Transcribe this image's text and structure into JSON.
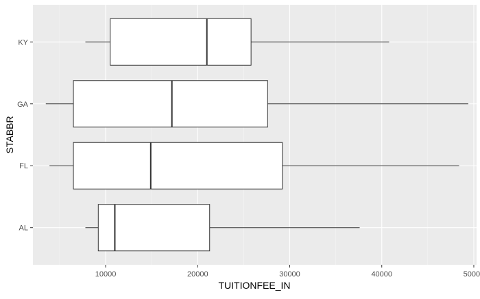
{
  "chart_data": {
    "type": "boxplot",
    "orientation": "horizontal",
    "title": "",
    "xlabel": "TUITIONFEE_IN",
    "ylabel": "STABBR",
    "xlim": [
      2100,
      50300
    ],
    "x_ticks": [
      10000,
      20000,
      30000,
      40000,
      50000
    ],
    "x_tick_labels": [
      "10000",
      "20000",
      "30000",
      "40000",
      "50000"
    ],
    "categories": [
      "AL",
      "FL",
      "GA",
      "KY"
    ],
    "boxes": [
      {
        "category": "AL",
        "whisker_low": 7800,
        "q1": 9200,
        "median": 11000,
        "q3": 21300,
        "whisker_high": 37600
      },
      {
        "category": "FL",
        "whisker_low": 3900,
        "q1": 6500,
        "median": 14900,
        "q3": 29200,
        "whisker_high": 48400
      },
      {
        "category": "GA",
        "whisker_low": 3500,
        "q1": 6500,
        "median": 17200,
        "q3": 27600,
        "whisker_high": 49400
      },
      {
        "category": "KY",
        "whisker_low": 7800,
        "q1": 10500,
        "median": 21000,
        "q3": 25800,
        "whisker_high": 40800
      }
    ],
    "grid": true,
    "legend": "none",
    "colors": {
      "panel_background": "#ebebeb",
      "grid_major": "#ffffff",
      "grid_minor": "#f5f5f5",
      "box_fill": "#ffffff",
      "box_stroke": "#333333",
      "text": "#000000",
      "tick_label": "#4d4d4d"
    }
  }
}
